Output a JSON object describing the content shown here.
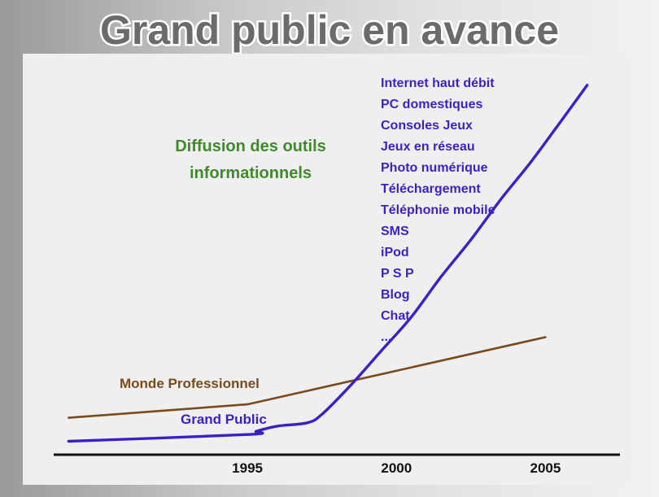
{
  "title": "Grand public en avance",
  "colors": {
    "title_fill": "#6b6b6b",
    "title_outline": "#ffffff",
    "panel": "#efefef",
    "axis": "#111111",
    "professional": "#7a4a1c",
    "consumer": "#3d1fc8",
    "heading": "#3f8a2a",
    "list_text": "#3d1fc8"
  },
  "chart_data": {
    "type": "line",
    "title": "Diffusion des outils informationnels",
    "title_lines": [
      "Diffusion des outils",
      "informationnels"
    ],
    "xlabel": "",
    "ylabel": "",
    "xlim": [
      1988.5,
      2007.5
    ],
    "ylim": [
      0,
      100
    ],
    "x_ticks": [
      1995,
      2000,
      2005
    ],
    "x_tick_labels": [
      "1995",
      "2000",
      "2005"
    ],
    "grid": false,
    "series": [
      {
        "name": "Monde Professionnel",
        "color": "#7a4a1c",
        "points": [
          [
            1989,
            11
          ],
          [
            1995,
            15
          ],
          [
            2005,
            35
          ]
        ]
      },
      {
        "name": "Grand Public",
        "color": "#3d1fc8",
        "points": [
          [
            1989,
            4
          ],
          [
            1995,
            6
          ],
          [
            1995.3,
            7
          ],
          [
            1996,
            8.5
          ],
          [
            1997,
            9.5
          ],
          [
            1997.5,
            12
          ],
          [
            1998.5,
            21
          ],
          [
            1999.5,
            31
          ],
          [
            2000.5,
            41
          ],
          [
            2001.5,
            53
          ],
          [
            2002.5,
            64
          ],
          [
            2003.5,
            76
          ],
          [
            2004.5,
            87
          ],
          [
            2005.5,
            99
          ],
          [
            2006.4,
            110
          ]
        ]
      }
    ],
    "annotation_list": [
      "Internet haut débit",
      "PC domestiques",
      "Consoles Jeux",
      "Jeux en réseau",
      "Photo numérique",
      "Téléchargement",
      "Téléphonie mobile",
      "SMS",
      "iPod",
      "P S P",
      "Blog",
      "Chat",
      "..."
    ]
  }
}
